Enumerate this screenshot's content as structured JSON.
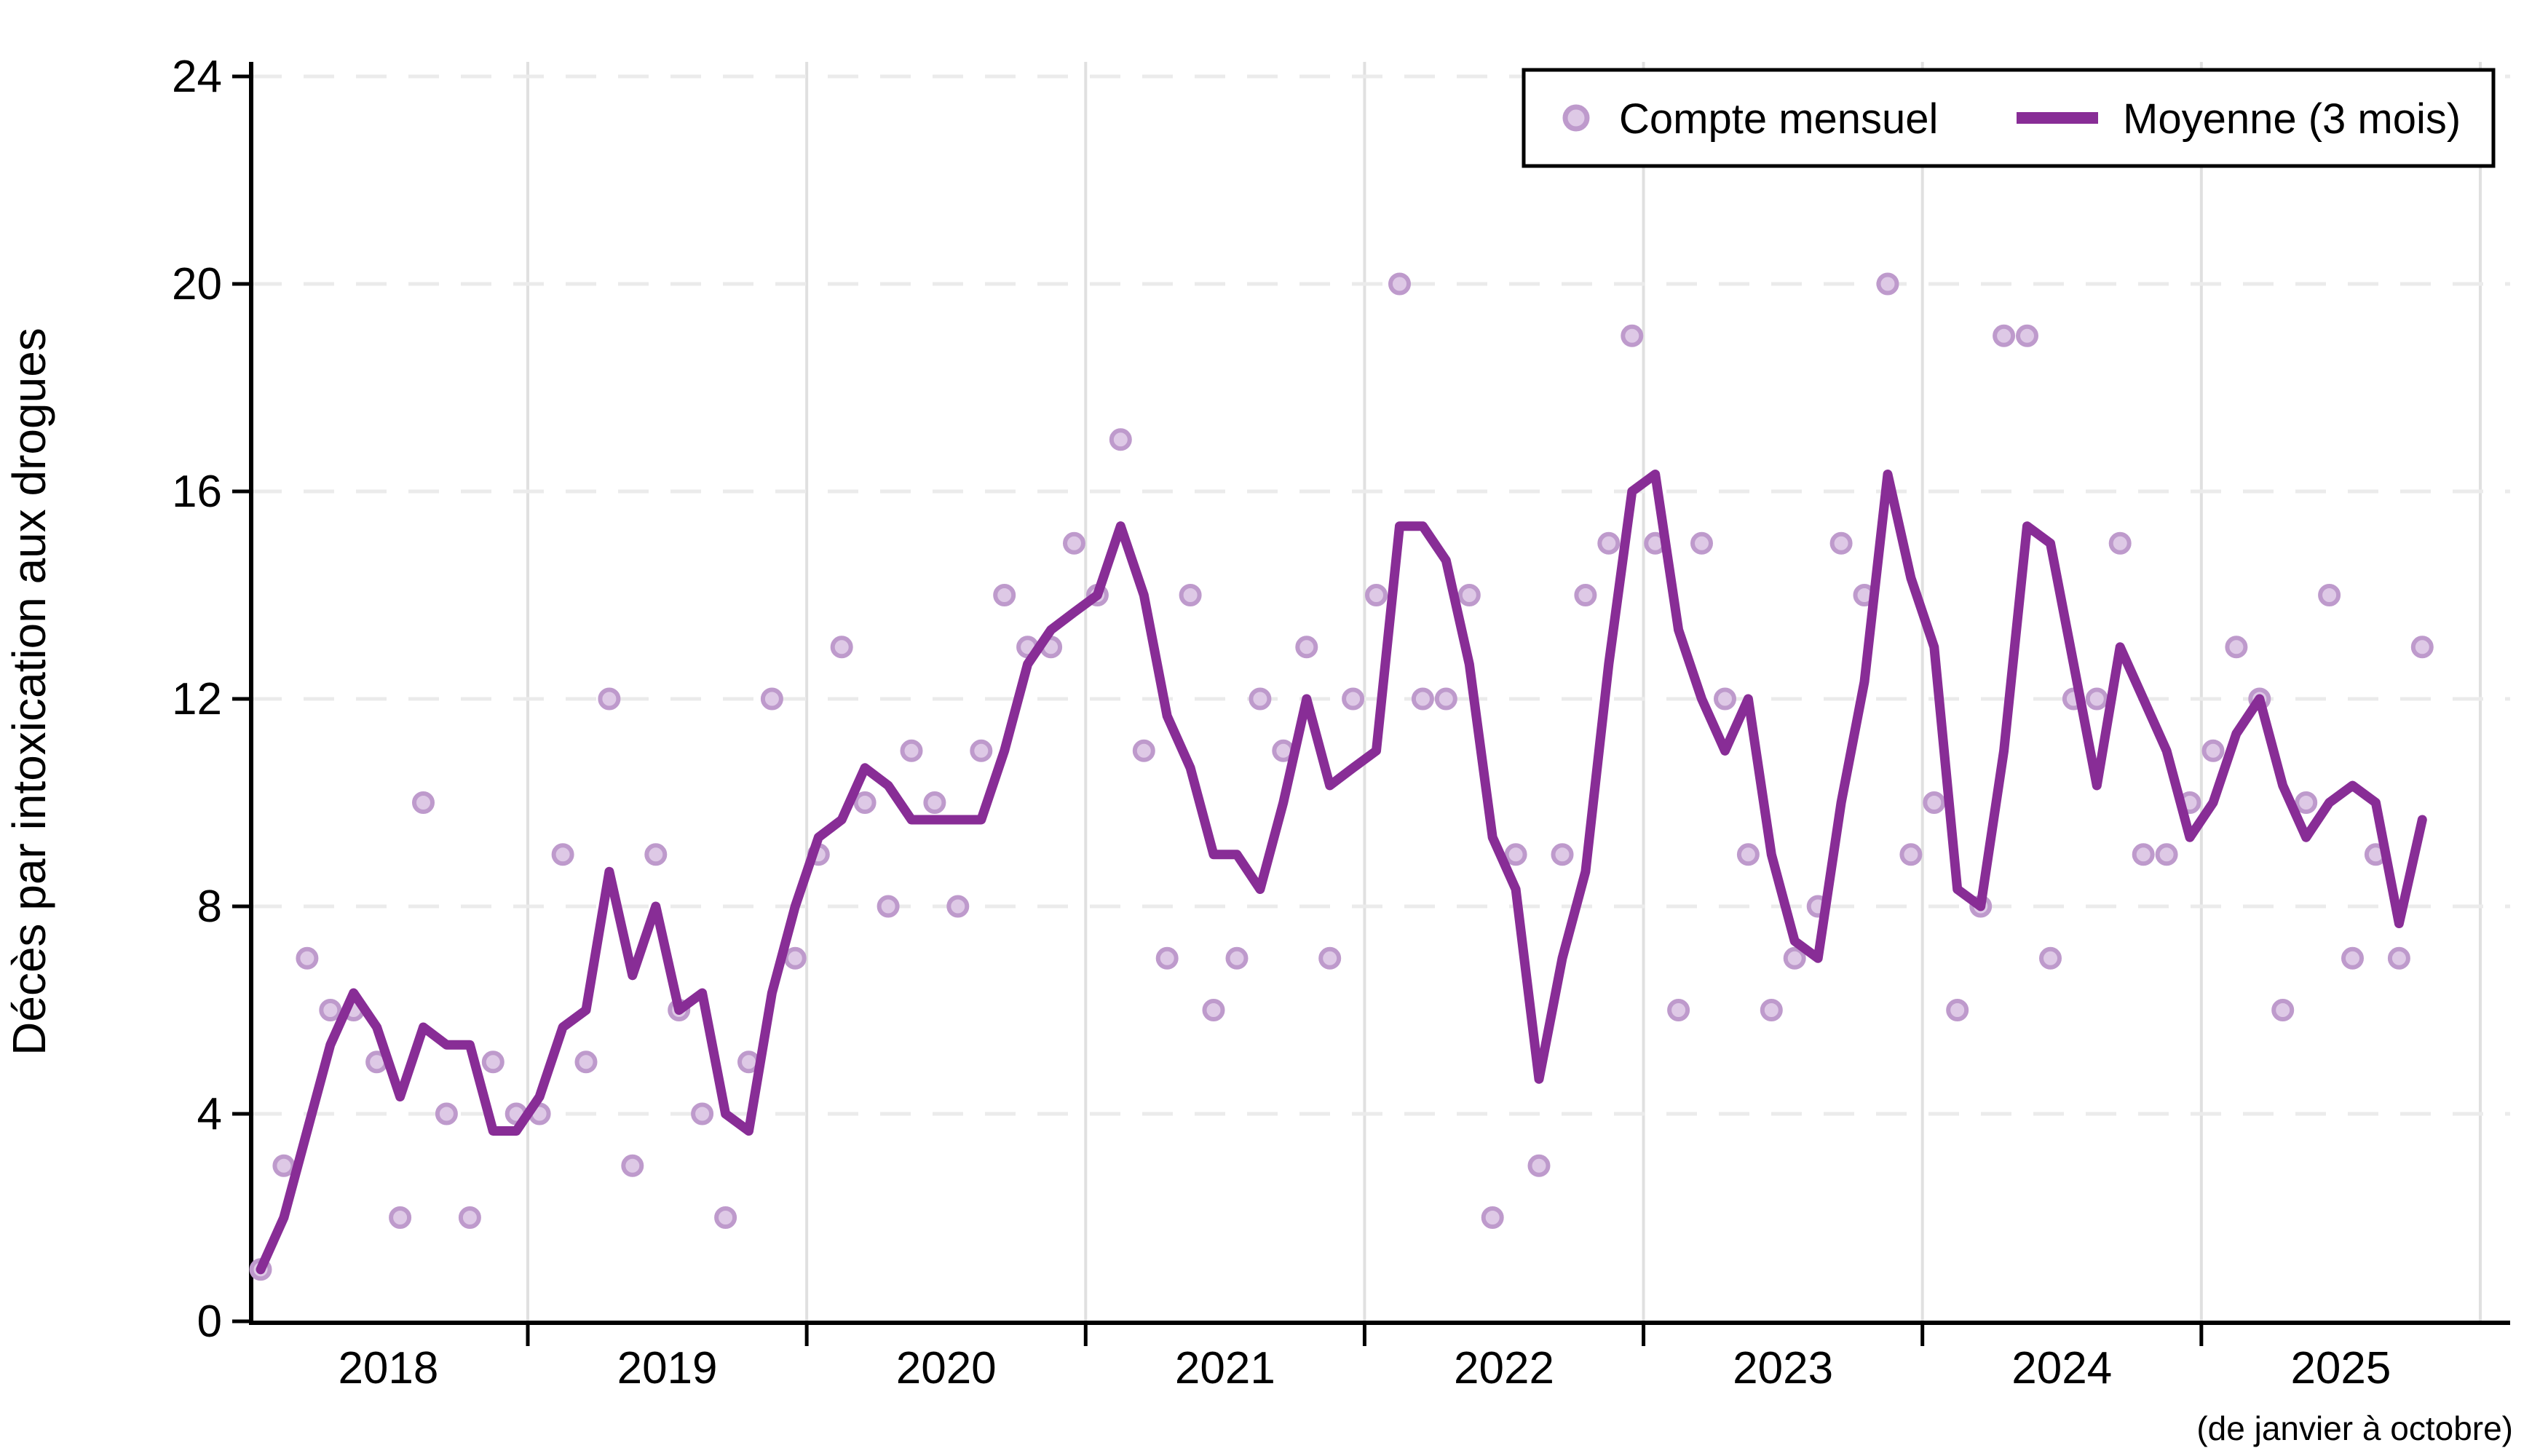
{
  "figure": {
    "y_axis_label": "Décès par intoxication aux drogues",
    "footnote": "(de janvier à octobre)"
  },
  "legend": {
    "items": [
      {
        "label": "Compte mensuel",
        "marker": "circle-icon"
      },
      {
        "label": "Moyenne (3 mois)",
        "marker": "line-swatch-icon"
      }
    ]
  },
  "colors": {
    "line": "#882D96",
    "dot_fill": "#DEC9E6",
    "dot_stroke": "#BE9ACC",
    "grid_vertical": "#E0E0E0",
    "grid_horizontal": "#EBEBEB",
    "axis": "#000000",
    "legend_border": "#000000"
  },
  "chart_data": {
    "type": "line",
    "description": "Monthly drug-intoxication deaths (scatter) with 3-month trailing moving average (line)",
    "x_start": "2018-01",
    "x_end": "2025-10",
    "ylim": [
      0,
      24
    ],
    "y_ticks": [
      0,
      4,
      8,
      12,
      16,
      20,
      24
    ],
    "x_year_labels": [
      "2018",
      "2019",
      "2020",
      "2021",
      "2022",
      "2023",
      "2024",
      "2025"
    ],
    "grid": {
      "vertical": "solid at each January 1",
      "horizontal": "dashed at y=4..24 step 4"
    },
    "legend_position": "top-right inside plot",
    "series": [
      {
        "name": "Compte mensuel",
        "style": "scatter",
        "values": [
          1,
          3,
          7,
          6,
          6,
          5,
          2,
          10,
          4,
          2,
          5,
          4,
          4,
          9,
          5,
          12,
          3,
          9,
          6,
          4,
          2,
          5,
          12,
          7,
          9,
          13,
          10,
          8,
          11,
          10,
          8,
          11,
          14,
          13,
          13,
          15,
          14,
          17,
          11,
          7,
          14,
          6,
          7,
          12,
          11,
          13,
          7,
          12,
          14,
          20,
          12,
          12,
          14,
          2,
          9,
          3,
          9,
          14,
          15,
          19,
          15,
          6,
          15,
          12,
          9,
          6,
          7,
          8,
          15,
          14,
          20,
          9,
          10,
          6,
          8,
          19,
          19,
          7,
          12,
          12,
          15,
          9,
          9,
          10,
          11,
          13,
          12,
          6,
          10,
          14,
          7,
          9,
          7,
          13
        ]
      },
      {
        "name": "Moyenne (3 mois)",
        "style": "line",
        "values": [
          1,
          2,
          3.67,
          5.33,
          6.33,
          5.67,
          4.33,
          5.67,
          5.33,
          5.33,
          3.67,
          3.67,
          4.33,
          5.67,
          6,
          8.67,
          6.67,
          8,
          6,
          6.33,
          4,
          3.67,
          6.33,
          8,
          9.33,
          9.67,
          10.67,
          10.33,
          9.67,
          9.67,
          9.67,
          9.67,
          11,
          12.67,
          13.33,
          13.67,
          14,
          15.33,
          14,
          11.67,
          10.67,
          9,
          9,
          8.33,
          10,
          12,
          10.33,
          10.67,
          11,
          15.33,
          15.33,
          14.67,
          12.67,
          9.33,
          8.33,
          4.67,
          7,
          8.67,
          12.67,
          16,
          16.33,
          13.33,
          12,
          11,
          12,
          9,
          7.33,
          7,
          10,
          12.33,
          16.33,
          14.33,
          13,
          8.33,
          8,
          11,
          15.33,
          15,
          12.67,
          10.33,
          13,
          12,
          11,
          9.33,
          10,
          11.33,
          12,
          10.33,
          9.33,
          10,
          10.33,
          10,
          7.67,
          9.67
        ]
      }
    ]
  }
}
